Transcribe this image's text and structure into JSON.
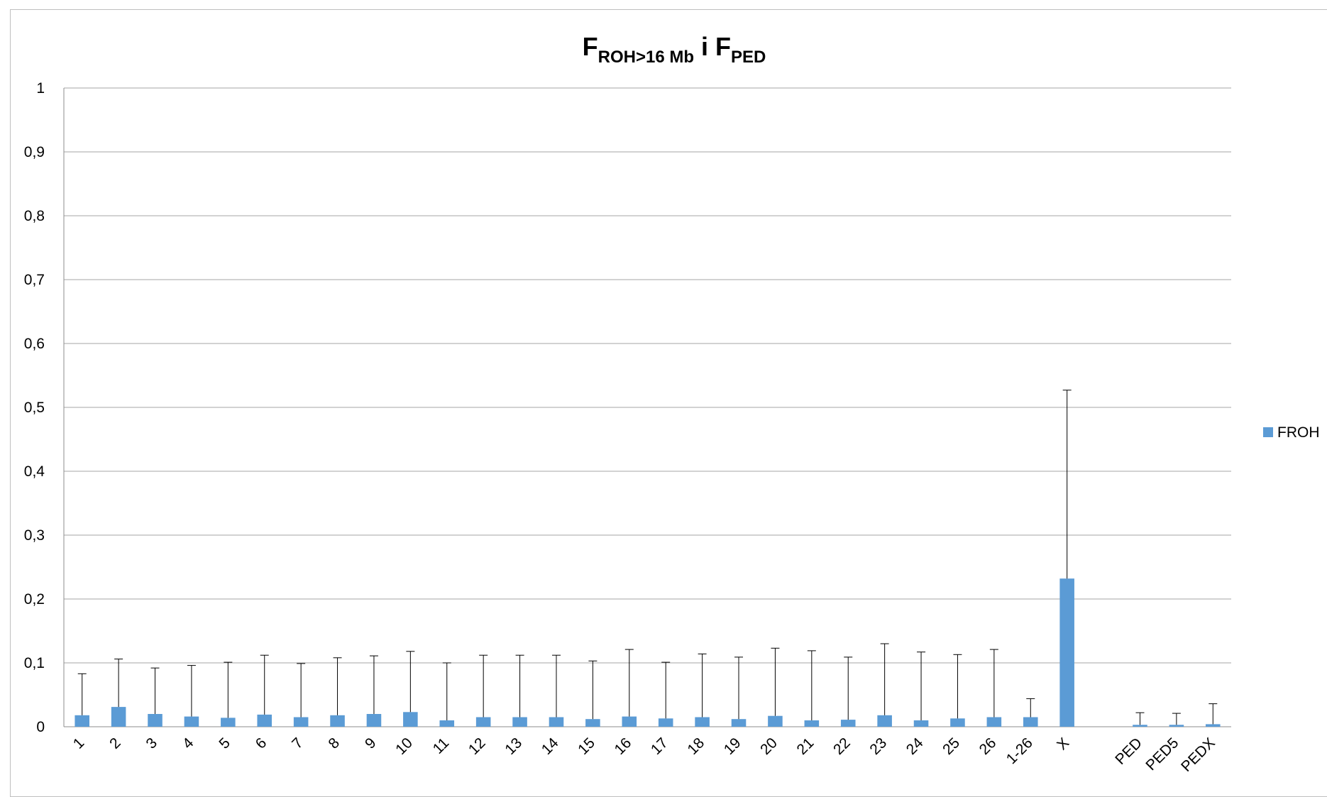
{
  "chart_data": {
    "type": "bar",
    "title": {
      "main": "F",
      "main_sub": "ROH>16 Mb",
      "connector": " i ",
      "second": "F",
      "second_sub": "PED"
    },
    "xlabel": "",
    "ylabel": "",
    "ylim": [
      0,
      1
    ],
    "yticks": [
      0,
      0.1,
      0.2,
      0.3,
      0.4,
      0.5,
      0.6,
      0.7,
      0.8,
      0.9,
      1
    ],
    "ytick_labels": [
      "0",
      "0,1",
      "0,2",
      "0,3",
      "0,4",
      "0,5",
      "0,6",
      "0,7",
      "0,8",
      "0,9",
      "1"
    ],
    "grid": true,
    "legend_position": "right",
    "categories": [
      "1",
      "2",
      "3",
      "4",
      "5",
      "6",
      "7",
      "8",
      "9",
      "10",
      "11",
      "12",
      "13",
      "14",
      "15",
      "16",
      "17",
      "18",
      "19",
      "20",
      "21",
      "22",
      "23",
      "24",
      "25",
      "26",
      "1-26",
      "X",
      "",
      "PED",
      "PED5",
      "PEDX"
    ],
    "series": [
      {
        "name": "FROH",
        "color": "#5b9bd5",
        "values": [
          0.018,
          0.031,
          0.02,
          0.016,
          0.014,
          0.019,
          0.015,
          0.018,
          0.02,
          0.023,
          0.01,
          0.015,
          0.015,
          0.015,
          0.012,
          0.016,
          0.013,
          0.015,
          0.012,
          0.017,
          0.01,
          0.011,
          0.018,
          0.01,
          0.013,
          0.015,
          0.015,
          0.232,
          null,
          0.003,
          0.003,
          0.004
        ],
        "error_upper": [
          0.083,
          0.106,
          0.092,
          0.096,
          0.101,
          0.112,
          0.099,
          0.108,
          0.111,
          0.118,
          0.1,
          0.112,
          0.112,
          0.112,
          0.103,
          0.121,
          0.101,
          0.114,
          0.109,
          0.123,
          0.119,
          0.109,
          0.13,
          0.117,
          0.113,
          0.121,
          0.044,
          0.527,
          null,
          0.022,
          0.021,
          0.036
        ]
      }
    ]
  }
}
